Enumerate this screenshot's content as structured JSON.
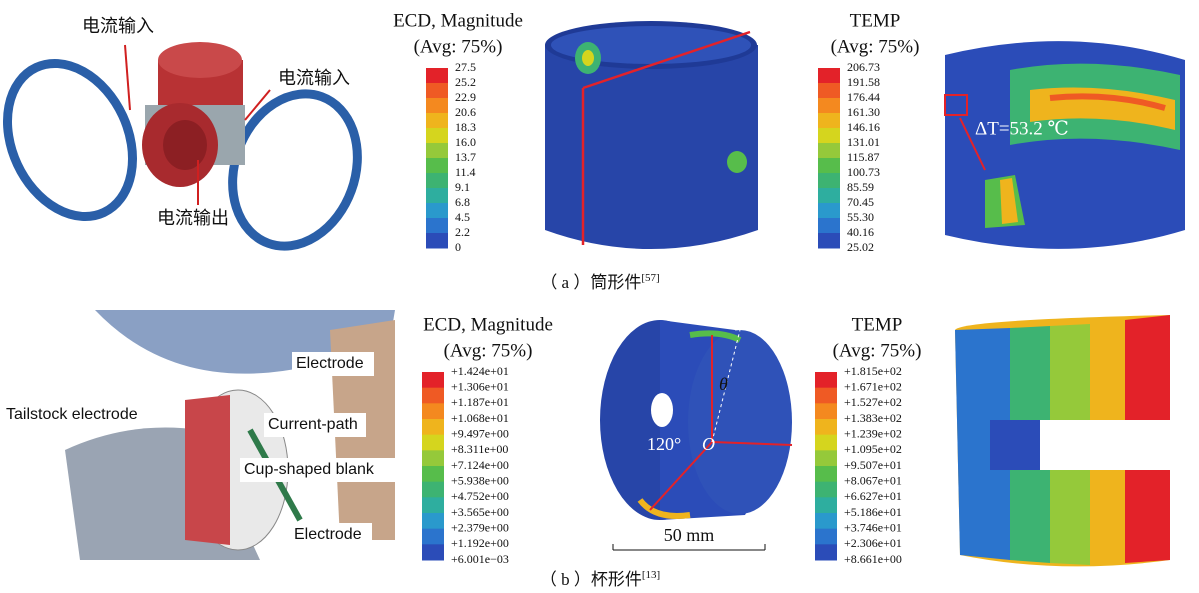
{
  "panel_a": {
    "labels": [
      "电流输入",
      "电流输入",
      "电流输出"
    ],
    "ecd_legend": {
      "title": "ECD, Magnitude",
      "subtitle": "(Avg: 75%)",
      "values": [
        "27.5",
        "25.2",
        "22.9",
        "20.6",
        "18.3",
        "16.0",
        "13.7",
        "11.4",
        "9.1",
        "6.8",
        "4.5",
        "2.2",
        "0"
      ],
      "colors": [
        "#e32229",
        "#ef5a24",
        "#f4891f",
        "#efb41d",
        "#d5d51e",
        "#95c93a",
        "#57bd4b",
        "#3db372",
        "#2eae9f",
        "#2a99cc",
        "#2b74cd",
        "#2b4cb8"
      ]
    },
    "temp_legend": {
      "title": "TEMP",
      "subtitle": "(Avg: 75%)",
      "values": [
        "206.73",
        "191.58",
        "176.44",
        "161.30",
        "146.16",
        "131.01",
        "115.87",
        "100.73",
        "85.59",
        "70.45",
        "55.30",
        "40.16",
        "25.02"
      ],
      "colors": [
        "#e32229",
        "#ef5a24",
        "#f4891f",
        "#efb41d",
        "#d5d51e",
        "#95c93a",
        "#57bd4b",
        "#3db372",
        "#2eae9f",
        "#2a99cc",
        "#2b74cd",
        "#2b4cb8"
      ]
    },
    "annotation": "ΔT=53.2 ℃",
    "caption": "（ a ）筒形件",
    "ref": "[57]"
  },
  "panel_b": {
    "labels": [
      "Electrode",
      "Tailstock electrode",
      "Current-path",
      "Cup-shaped blank",
      "Electrode"
    ],
    "ecd_legend": {
      "title": "ECD, Magnitude",
      "subtitle": "(Avg: 75%)",
      "values": [
        "+1.424e+01",
        "+1.306e+01",
        "+1.187e+01",
        "+1.068e+01",
        "+9.497e+00",
        "+8.311e+00",
        "+7.124e+00",
        "+5.938e+00",
        "+4.752e+00",
        "+3.565e+00",
        "+2.379e+00",
        "+1.192e+00",
        "+6.001e−03"
      ],
      "colors": [
        "#e32229",
        "#ef5a24",
        "#f4891f",
        "#efb41d",
        "#d5d51e",
        "#95c93a",
        "#57bd4b",
        "#3db372",
        "#2eae9f",
        "#2a99cc",
        "#2b74cd",
        "#2b4cb8"
      ]
    },
    "temp_legend": {
      "title": "TEMP",
      "subtitle": "(Avg: 75%)",
      "values": [
        "+1.815e+02",
        "+1.671e+02",
        "+1.527e+02",
        "+1.383e+02",
        "+1.239e+02",
        "+1.095e+02",
        "+9.507e+01",
        "+8.067e+01",
        "+6.627e+01",
        "+5.186e+01",
        "+3.746e+01",
        "+2.306e+01",
        "+8.661e+00"
      ],
      "colors": [
        "#e32229",
        "#ef5a24",
        "#f4891f",
        "#efb41d",
        "#d5d51e",
        "#95c93a",
        "#57bd4b",
        "#3db372",
        "#2eae9f",
        "#2a99cc",
        "#2b74cd",
        "#2b4cb8"
      ]
    },
    "geometry_labels": [
      "θ",
      "120°",
      "O"
    ],
    "scale_bar": "50 mm",
    "caption": "（ b ）杯形件",
    "ref": "[13]"
  }
}
